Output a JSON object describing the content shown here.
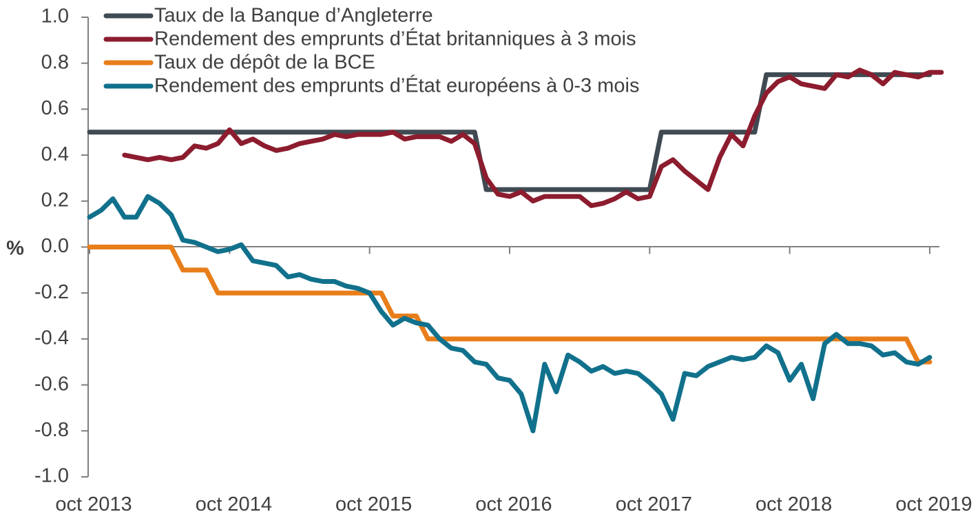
{
  "chart_data": {
    "type": "line",
    "ylabel": "%",
    "xlabel": "",
    "title": "",
    "ylim": [
      -1.0,
      1.0
    ],
    "yticks": [
      1.0,
      0.8,
      0.6,
      0.4,
      0.2,
      0.0,
      -0.2,
      -0.4,
      -0.6,
      -0.8,
      -1.0
    ],
    "ytick_labels": [
      "1.0",
      "0.8",
      "0.6",
      "0.4",
      "0.2",
      "0.0",
      "-0.2",
      "-0.4",
      "-0.6",
      "-0.8",
      "-1.0"
    ],
    "xlim": [
      "2013-10",
      "2019-10"
    ],
    "xticks": [
      "2013-10",
      "2014-10",
      "2015-10",
      "2016-10",
      "2017-10",
      "2018-10",
      "2019-10"
    ],
    "xtick_labels": [
      "oct 2013",
      "oct 2014",
      "oct 2015",
      "oct 2016",
      "oct 2017",
      "oct 2018",
      "oct 2019"
    ],
    "grid": false,
    "legend_position": "top-left",
    "series": [
      {
        "name": "Taux de la Banque d’Angleterre",
        "color": "#404a52",
        "points": [
          [
            "2013-10",
            0.5
          ],
          [
            "2016-07",
            0.5
          ],
          [
            "2016-08",
            0.25
          ],
          [
            "2017-10",
            0.25
          ],
          [
            "2017-11",
            0.5
          ],
          [
            "2018-07",
            0.5
          ],
          [
            "2018-08",
            0.75
          ],
          [
            "2019-10",
            0.75
          ]
        ]
      },
      {
        "name": "Rendement des emprunts d’État britanniques à 3 mois",
        "color": "#8c1c2e",
        "points": [
          [
            "2014-01",
            0.4
          ],
          [
            "2014-02",
            0.39
          ],
          [
            "2014-03",
            0.38
          ],
          [
            "2014-04",
            0.39
          ],
          [
            "2014-05",
            0.38
          ],
          [
            "2014-06",
            0.39
          ],
          [
            "2014-07",
            0.44
          ],
          [
            "2014-08",
            0.43
          ],
          [
            "2014-09",
            0.45
          ],
          [
            "2014-10",
            0.51
          ],
          [
            "2014-11",
            0.45
          ],
          [
            "2014-12",
            0.47
          ],
          [
            "2015-01",
            0.44
          ],
          [
            "2015-02",
            0.42
          ],
          [
            "2015-03",
            0.43
          ],
          [
            "2015-04",
            0.45
          ],
          [
            "2015-05",
            0.46
          ],
          [
            "2015-06",
            0.47
          ],
          [
            "2015-07",
            0.49
          ],
          [
            "2015-08",
            0.48
          ],
          [
            "2015-09",
            0.49
          ],
          [
            "2015-10",
            0.49
          ],
          [
            "2015-11",
            0.49
          ],
          [
            "2015-12",
            0.5
          ],
          [
            "2016-01",
            0.47
          ],
          [
            "2016-02",
            0.48
          ],
          [
            "2016-03",
            0.48
          ],
          [
            "2016-04",
            0.48
          ],
          [
            "2016-05",
            0.46
          ],
          [
            "2016-06",
            0.49
          ],
          [
            "2016-07",
            0.45
          ],
          [
            "2016-08",
            0.3
          ],
          [
            "2016-09",
            0.23
          ],
          [
            "2016-10",
            0.22
          ],
          [
            "2016-11",
            0.24
          ],
          [
            "2016-12",
            0.2
          ],
          [
            "2017-01",
            0.22
          ],
          [
            "2017-02",
            0.22
          ],
          [
            "2017-03",
            0.22
          ],
          [
            "2017-04",
            0.22
          ],
          [
            "2017-05",
            0.18
          ],
          [
            "2017-06",
            0.19
          ],
          [
            "2017-07",
            0.21
          ],
          [
            "2017-08",
            0.24
          ],
          [
            "2017-09",
            0.21
          ],
          [
            "2017-10",
            0.22
          ],
          [
            "2017-11",
            0.35
          ],
          [
            "2017-12",
            0.38
          ],
          [
            "2018-01",
            0.33
          ],
          [
            "2018-02",
            0.29
          ],
          [
            "2018-03",
            0.25
          ],
          [
            "2018-04",
            0.39
          ],
          [
            "2018-05",
            0.49
          ],
          [
            "2018-06",
            0.44
          ],
          [
            "2018-07",
            0.57
          ],
          [
            "2018-08",
            0.67
          ],
          [
            "2018-09",
            0.72
          ],
          [
            "2018-10",
            0.74
          ],
          [
            "2018-11",
            0.71
          ],
          [
            "2018-12",
            0.7
          ],
          [
            "2019-01",
            0.69
          ],
          [
            "2019-02",
            0.75
          ],
          [
            "2019-03",
            0.74
          ],
          [
            "2019-04",
            0.77
          ],
          [
            "2019-05",
            0.75
          ],
          [
            "2019-06",
            0.71
          ],
          [
            "2019-07",
            0.76
          ],
          [
            "2019-08",
            0.75
          ],
          [
            "2019-09",
            0.74
          ],
          [
            "2019-10",
            0.76
          ],
          [
            "2019-11",
            0.76
          ]
        ]
      },
      {
        "name": "Taux de dépôt de la BCE",
        "color": "#e87e1a",
        "points": [
          [
            "2013-10",
            0.0
          ],
          [
            "2014-05",
            0.0
          ],
          [
            "2014-06",
            -0.1
          ],
          [
            "2014-08",
            -0.1
          ],
          [
            "2014-09",
            -0.2
          ],
          [
            "2015-11",
            -0.2
          ],
          [
            "2015-12",
            -0.3
          ],
          [
            "2016-02",
            -0.3
          ],
          [
            "2016-03",
            -0.4
          ],
          [
            "2019-08",
            -0.4
          ],
          [
            "2019-09",
            -0.5
          ],
          [
            "2019-10",
            -0.5
          ]
        ]
      },
      {
        "name": "Rendement des emprunts d’État européens à 0-3 mois",
        "color": "#11718c",
        "points": [
          [
            "2013-10",
            0.13
          ],
          [
            "2013-11",
            0.16
          ],
          [
            "2013-12",
            0.21
          ],
          [
            "2014-01",
            0.13
          ],
          [
            "2014-02",
            0.13
          ],
          [
            "2014-03",
            0.22
          ],
          [
            "2014-04",
            0.19
          ],
          [
            "2014-05",
            0.14
          ],
          [
            "2014-06",
            0.03
          ],
          [
            "2014-07",
            0.02
          ],
          [
            "2014-08",
            0.0
          ],
          [
            "2014-09",
            -0.02
          ],
          [
            "2014-10",
            -0.01
          ],
          [
            "2014-11",
            0.01
          ],
          [
            "2014-12",
            -0.06
          ],
          [
            "2015-01",
            -0.07
          ],
          [
            "2015-02",
            -0.08
          ],
          [
            "2015-03",
            -0.13
          ],
          [
            "2015-04",
            -0.12
          ],
          [
            "2015-05",
            -0.14
          ],
          [
            "2015-06",
            -0.15
          ],
          [
            "2015-07",
            -0.15
          ],
          [
            "2015-08",
            -0.17
          ],
          [
            "2015-09",
            -0.18
          ],
          [
            "2015-10",
            -0.2
          ],
          [
            "2015-11",
            -0.28
          ],
          [
            "2015-12",
            -0.34
          ],
          [
            "2016-01",
            -0.31
          ],
          [
            "2016-02",
            -0.33
          ],
          [
            "2016-03",
            -0.34
          ],
          [
            "2016-04",
            -0.4
          ],
          [
            "2016-05",
            -0.44
          ],
          [
            "2016-06",
            -0.45
          ],
          [
            "2016-07",
            -0.5
          ],
          [
            "2016-08",
            -0.51
          ],
          [
            "2016-09",
            -0.57
          ],
          [
            "2016-10",
            -0.58
          ],
          [
            "2016-11",
            -0.64
          ],
          [
            "2016-12",
            -0.8
          ],
          [
            "2017-01",
            -0.51
          ],
          [
            "2017-02",
            -0.63
          ],
          [
            "2017-03",
            -0.47
          ],
          [
            "2017-04",
            -0.5
          ],
          [
            "2017-05",
            -0.54
          ],
          [
            "2017-06",
            -0.52
          ],
          [
            "2017-07",
            -0.55
          ],
          [
            "2017-08",
            -0.54
          ],
          [
            "2017-09",
            -0.55
          ],
          [
            "2017-10",
            -0.59
          ],
          [
            "2017-11",
            -0.64
          ],
          [
            "2017-12",
            -0.75
          ],
          [
            "2018-01",
            -0.55
          ],
          [
            "2018-02",
            -0.56
          ],
          [
            "2018-03",
            -0.52
          ],
          [
            "2018-04",
            -0.5
          ],
          [
            "2018-05",
            -0.48
          ],
          [
            "2018-06",
            -0.49
          ],
          [
            "2018-07",
            -0.48
          ],
          [
            "2018-08",
            -0.43
          ],
          [
            "2018-09",
            -0.46
          ],
          [
            "2018-10",
            -0.58
          ],
          [
            "2018-11",
            -0.51
          ],
          [
            "2018-12",
            -0.66
          ],
          [
            "2019-01",
            -0.42
          ],
          [
            "2019-02",
            -0.38
          ],
          [
            "2019-03",
            -0.42
          ],
          [
            "2019-04",
            -0.42
          ],
          [
            "2019-05",
            -0.43
          ],
          [
            "2019-06",
            -0.47
          ],
          [
            "2019-07",
            -0.46
          ],
          [
            "2019-08",
            -0.5
          ],
          [
            "2019-09",
            -0.51
          ],
          [
            "2019-10",
            -0.48
          ]
        ]
      }
    ]
  }
}
